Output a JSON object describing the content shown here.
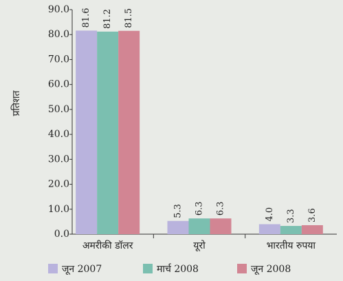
{
  "chart_data": {
    "type": "bar",
    "y_label": "प्रतिशत",
    "categories": [
      "अमरीकी डॉलर",
      "यूरो",
      "भारतीय रुपया"
    ],
    "series": [
      {
        "name": "जून 2007",
        "color": "#b9b3dd",
        "values": [
          81.6,
          5.3,
          4.0
        ],
        "value_labels": [
          "81.6",
          "5.3",
          "4.0"
        ]
      },
      {
        "name": "मार्च 2008",
        "color": "#7bbfb0",
        "values": [
          81.2,
          6.3,
          3.3
        ],
        "value_labels": [
          "81.2",
          "6.3",
          "3.3"
        ]
      },
      {
        "name": "जून 2008",
        "color": "#d28593",
        "values": [
          81.5,
          6.3,
          3.6
        ],
        "value_labels": [
          "81.5",
          "6.3",
          "3.6"
        ]
      }
    ],
    "ylim": [
      0,
      90
    ],
    "yticks": [
      {
        "value": 0,
        "label": "0.0"
      },
      {
        "value": 10,
        "label": "10.0"
      },
      {
        "value": 20,
        "label": "20.0"
      },
      {
        "value": 30,
        "label": "30.0"
      },
      {
        "value": 40,
        "label": "40.0"
      },
      {
        "value": 50,
        "label": "50.0"
      },
      {
        "value": 60,
        "label": "60.0"
      },
      {
        "value": 70,
        "label": "70.0"
      },
      {
        "value": 80,
        "label": "80.0"
      },
      {
        "value": 90,
        "label": "90.0"
      }
    ],
    "legend": "bottom"
  }
}
